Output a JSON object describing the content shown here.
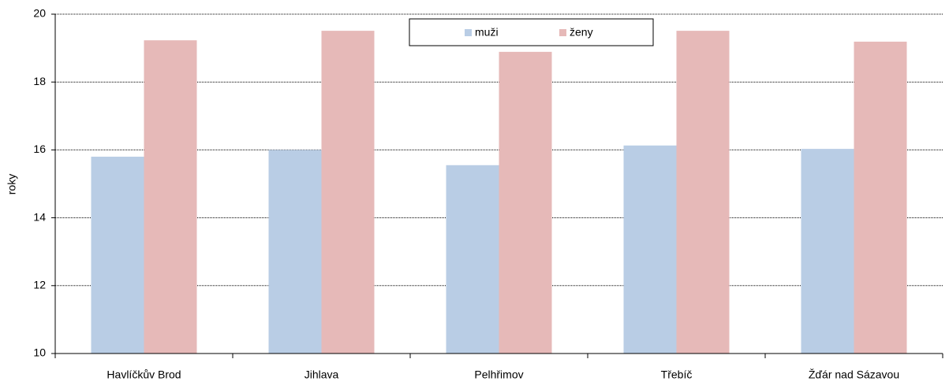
{
  "chart_data": {
    "type": "bar",
    "y_label": "roky",
    "categories": [
      "Havlíčkův Brod",
      "Jihlava",
      "Pelhřimov",
      "Třebíč",
      "Žďár nad Sázavou"
    ],
    "series": [
      {
        "name": "muži",
        "color": "#b9cde5",
        "values": [
          15.8,
          16.0,
          15.55,
          16.13,
          16.03
        ]
      },
      {
        "name": "ženy",
        "color": "#e6b9b8",
        "values": [
          19.23,
          19.51,
          18.89,
          19.51,
          19.19
        ]
      }
    ],
    "ylim": [
      10,
      20
    ],
    "yticks": [
      10,
      12,
      14,
      16,
      18,
      20
    ],
    "grid": true,
    "legend": "top"
  }
}
